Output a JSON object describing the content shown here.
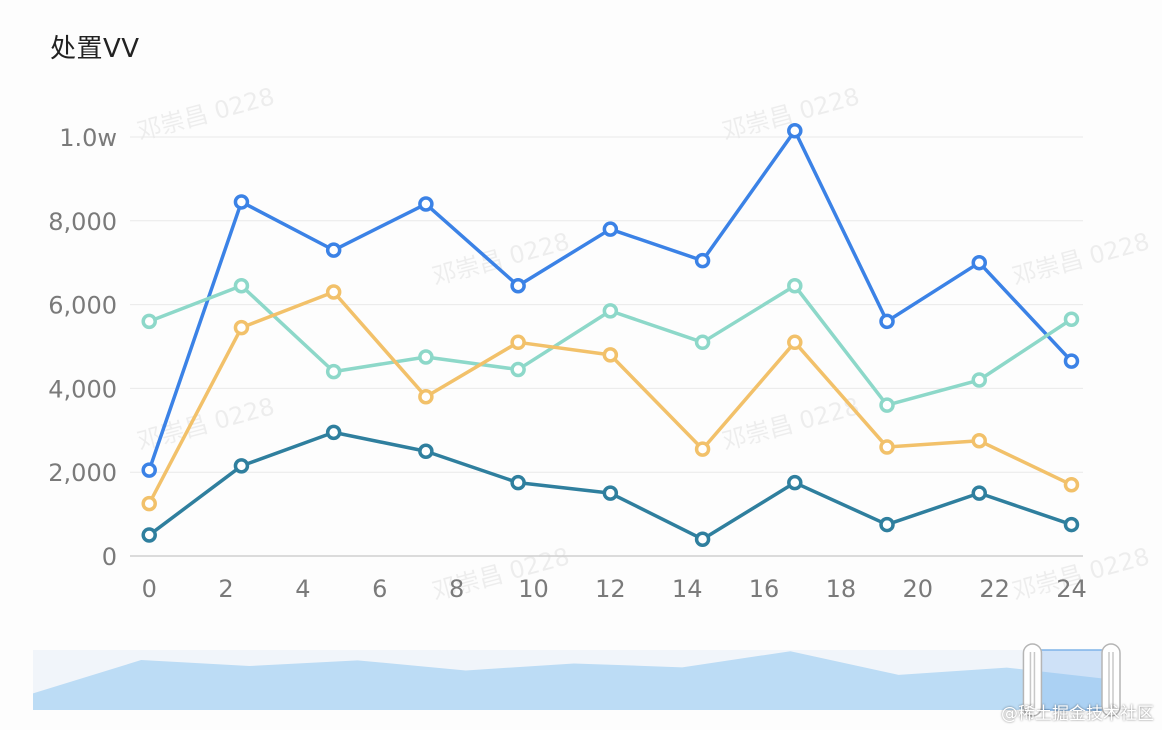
{
  "title": "处置VV",
  "attribution": "@稀土掘金技术社区",
  "watermark": "邓崇昌 0228",
  "chart_data": {
    "type": "line",
    "title": "处置VV",
    "x": [
      0,
      2.4,
      4.8,
      7.2,
      9.6,
      12,
      14.4,
      16.8,
      19.2,
      21.6,
      24
    ],
    "xticks": [
      0,
      2,
      4,
      6,
      8,
      10,
      12,
      14,
      16,
      18,
      20,
      22,
      24
    ],
    "xlim": [
      -0.5,
      24.3
    ],
    "ylim": [
      0,
      10000
    ],
    "yticks": [
      {
        "value": 0,
        "label": "0"
      },
      {
        "value": 2000,
        "label": "2,000"
      },
      {
        "value": 4000,
        "label": "4,000"
      },
      {
        "value": 6000,
        "label": "6,000"
      },
      {
        "value": 8000,
        "label": "8,000"
      },
      {
        "value": 10000,
        "label": "1.0w"
      }
    ],
    "grid": true,
    "legend": "none",
    "series": [
      {
        "color": "#3b82e6",
        "values": [
          2050,
          8450,
          7300,
          8400,
          6450,
          7800,
          7050,
          10150,
          5600,
          7000,
          4650
        ]
      },
      {
        "color": "#8dd8c9",
        "values": [
          5600,
          6450,
          4400,
          4750,
          4450,
          5850,
          5100,
          6450,
          3600,
          4200,
          5650
        ]
      },
      {
        "color": "#f2c16a",
        "values": [
          1250,
          5450,
          6300,
          3800,
          5100,
          4800,
          2550,
          5100,
          2600,
          2750,
          1700
        ]
      },
      {
        "color": "#2f7f9e",
        "values": [
          500,
          2150,
          2950,
          2500,
          1750,
          1500,
          400,
          1750,
          750,
          1500,
          750
        ]
      }
    ]
  },
  "data_zoom": {
    "start": 0.92,
    "end": 1.0,
    "fill_color": "#bcdcf5",
    "background": "#f1f5fa"
  }
}
